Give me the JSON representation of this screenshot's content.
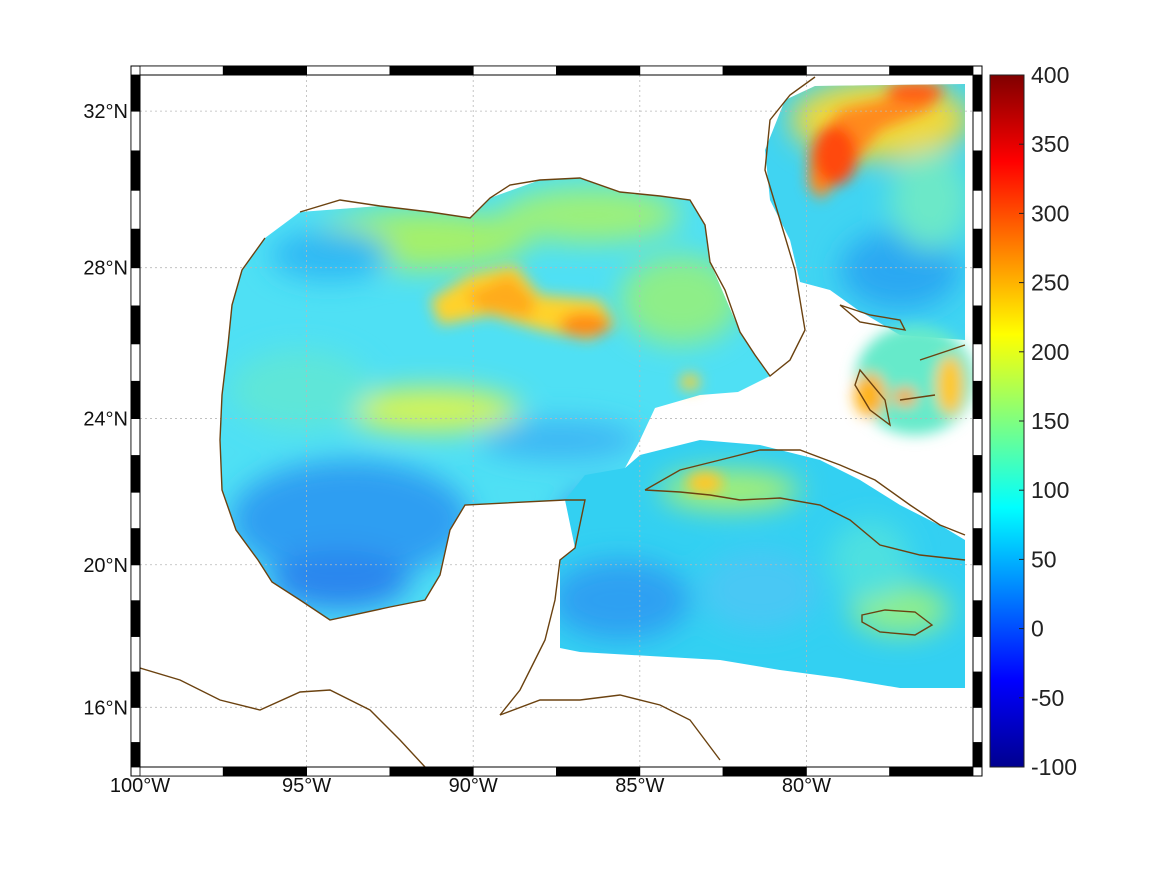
{
  "map": {
    "projection": "mercator",
    "extent": {
      "lon": [
        -100,
        -75
      ],
      "lat": [
        14.3,
        32.9
      ]
    },
    "lon_ticks": [
      {
        "value": -100,
        "label": "100°W"
      },
      {
        "value": -95,
        "label": "95°W"
      },
      {
        "value": -90,
        "label": "90°W"
      },
      {
        "value": -85,
        "label": "85°W"
      },
      {
        "value": -80,
        "label": "80°W"
      }
    ],
    "lat_ticks": [
      {
        "value": 16,
        "label": "16°N"
      },
      {
        "value": 20,
        "label": "20°N"
      },
      {
        "value": 24,
        "label": "24°N"
      },
      {
        "value": 28,
        "label": "28°N"
      },
      {
        "value": 32,
        "label": "32°N"
      }
    ],
    "grid": true,
    "frame_style": "alternating black-white",
    "coastline_color": "#6b4210",
    "land_color": "#ffffff",
    "colormap": "jet"
  },
  "colorbar": {
    "min": -100,
    "max": 400,
    "ticks": [
      "400",
      "350",
      "300",
      "250",
      "200",
      "150",
      "100",
      "50",
      "0",
      "-50",
      "-100"
    ],
    "placement": "right"
  }
}
